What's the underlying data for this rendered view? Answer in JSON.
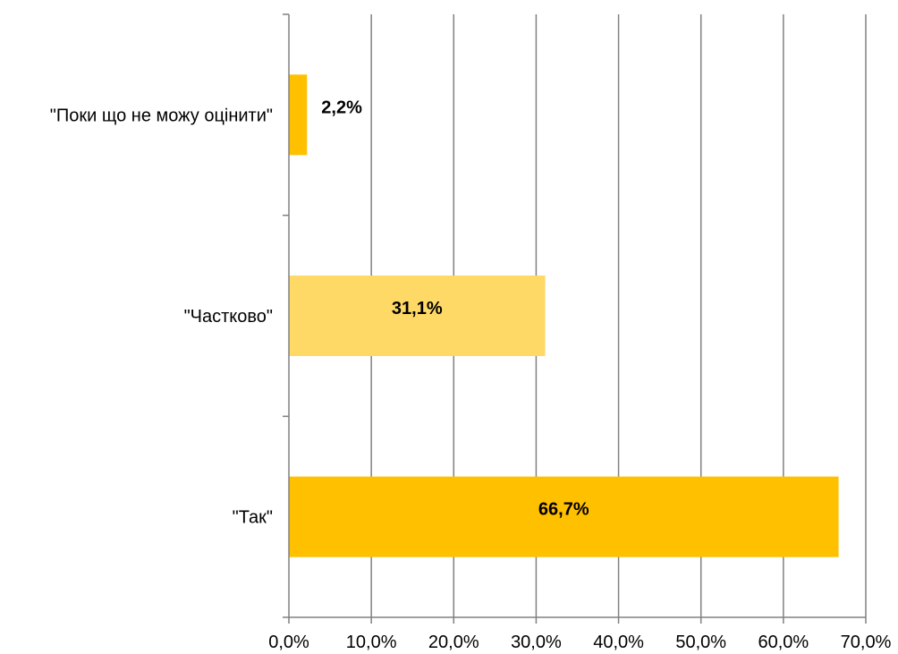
{
  "chart_data": {
    "type": "bar",
    "orientation": "horizontal",
    "categories": [
      "\"Поки що не можу оцінити\"",
      "\"Частково\"",
      "\"Так\""
    ],
    "values": [
      2.2,
      31.1,
      66.7
    ],
    "value_labels": [
      "2,2%",
      "31,1%",
      "66,7%"
    ],
    "bar_colors": [
      "#FFC000",
      "#FFD966",
      "#FFC000"
    ],
    "xlim": [
      0,
      70
    ],
    "xticks": [
      0,
      10,
      20,
      30,
      40,
      50,
      60,
      70
    ],
    "xtick_labels": [
      "0,0%",
      "10,0%",
      "20,0%",
      "30,0%",
      "40,0%",
      "50,0%",
      "60,0%",
      "70,0%"
    ],
    "grid": true,
    "legend": "none",
    "title": "",
    "xlabel": "",
    "ylabel": ""
  }
}
